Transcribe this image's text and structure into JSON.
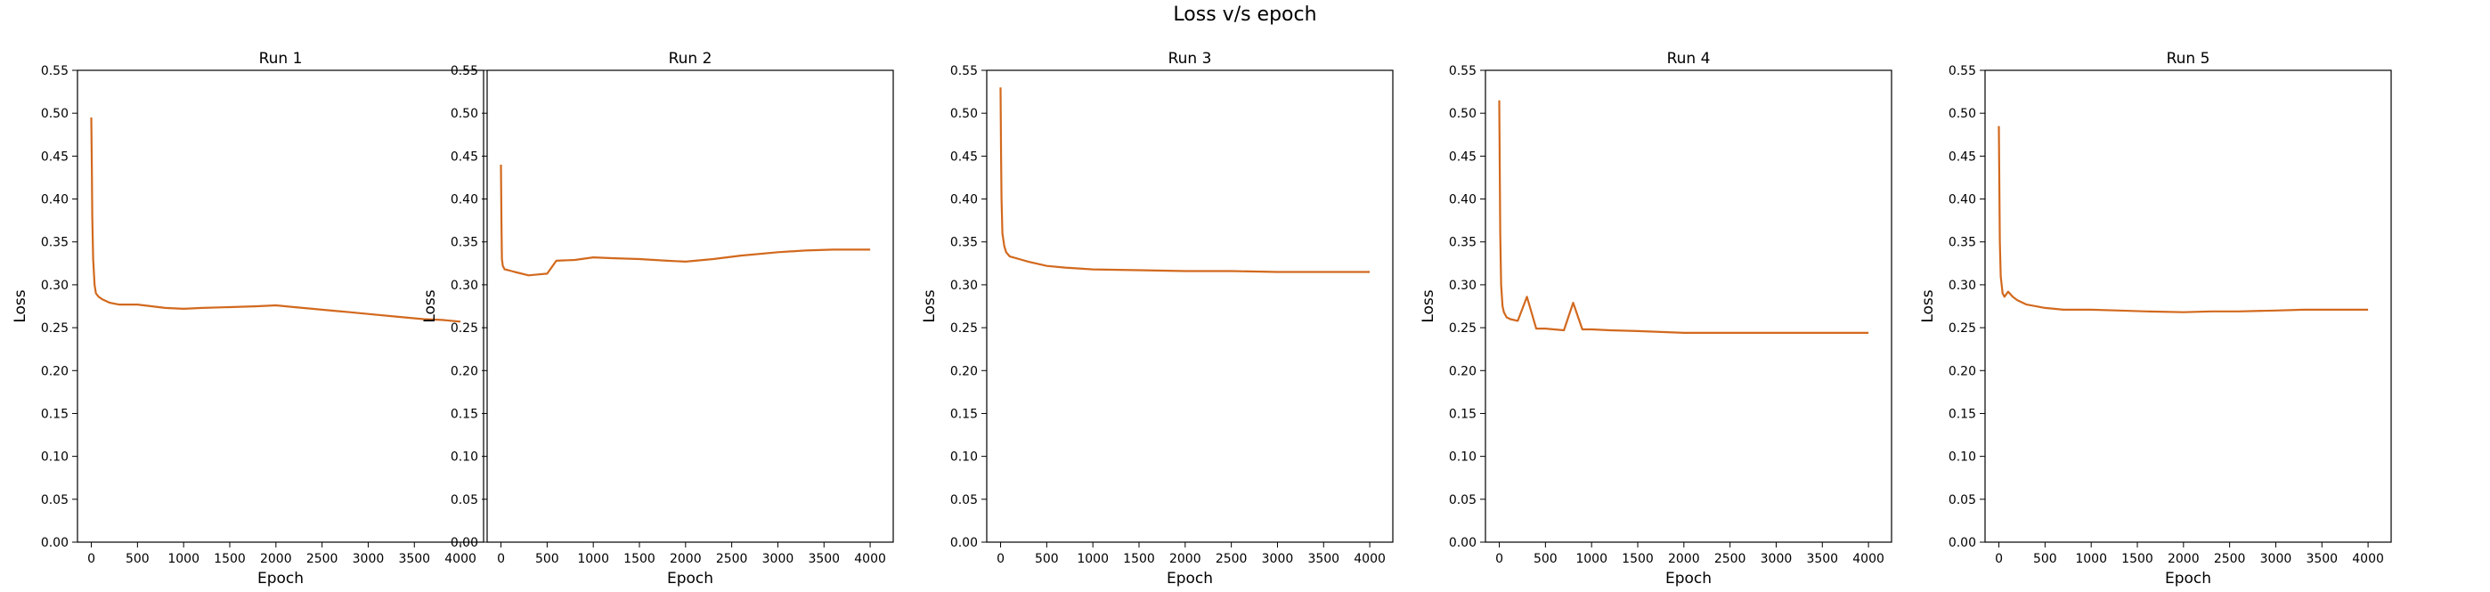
{
  "figure": {
    "suptitle": "Loss v/s epoch"
  },
  "chart_data": [
    {
      "type": "line",
      "title": "Run 1",
      "xlabel": "Epoch",
      "ylabel": "Loss",
      "xlim": [
        -150,
        4250
      ],
      "ylim": [
        0,
        0.55
      ],
      "xticks": [
        0,
        500,
        1000,
        1500,
        2000,
        2500,
        3000,
        3500,
        4000
      ],
      "yticks": [
        0.0,
        0.05,
        0.1,
        0.15,
        0.2,
        0.25,
        0.3,
        0.35,
        0.4,
        0.45,
        0.5,
        0.55
      ],
      "color": "#d2691e",
      "series": [
        {
          "x": [
            0,
            5,
            10,
            20,
            35,
            50,
            80,
            120,
            200,
            300,
            500,
            800,
            1000,
            1200,
            1500,
            1800,
            2000,
            2200,
            2500,
            2800,
            3000,
            3300,
            3600,
            3800,
            4000
          ],
          "y": [
            0.495,
            0.44,
            0.38,
            0.33,
            0.3,
            0.29,
            0.286,
            0.283,
            0.279,
            0.277,
            0.277,
            0.273,
            0.272,
            0.273,
            0.274,
            0.275,
            0.276,
            0.274,
            0.271,
            0.268,
            0.266,
            0.263,
            0.26,
            0.259,
            0.257
          ]
        }
      ]
    },
    {
      "type": "line",
      "title": "Run 2",
      "xlabel": "Epoch",
      "ylabel": "Loss",
      "xlim": [
        -150,
        4250
      ],
      "ylim": [
        0,
        0.55
      ],
      "xticks": [
        0,
        500,
        1000,
        1500,
        2000,
        2500,
        3000,
        3500,
        4000
      ],
      "yticks": [
        0.0,
        0.05,
        0.1,
        0.15,
        0.2,
        0.25,
        0.3,
        0.35,
        0.4,
        0.45,
        0.5,
        0.55
      ],
      "color": "#d2691e",
      "series": [
        {
          "x": [
            0,
            5,
            10,
            20,
            40,
            80,
            150,
            300,
            400,
            500,
            600,
            800,
            1000,
            1200,
            1500,
            1800,
            2000,
            2300,
            2600,
            3000,
            3300,
            3600,
            4000
          ],
          "y": [
            0.44,
            0.37,
            0.33,
            0.322,
            0.318,
            0.317,
            0.315,
            0.311,
            0.312,
            0.313,
            0.328,
            0.329,
            0.332,
            0.331,
            0.33,
            0.328,
            0.327,
            0.33,
            0.334,
            0.338,
            0.34,
            0.341,
            0.341
          ]
        }
      ]
    },
    {
      "type": "line",
      "title": "Run 3",
      "xlabel": "Epoch",
      "ylabel": "Loss",
      "xlim": [
        -150,
        4250
      ],
      "ylim": [
        0,
        0.55
      ],
      "xticks": [
        0,
        500,
        1000,
        1500,
        2000,
        2500,
        3000,
        3500,
        4000
      ],
      "yticks": [
        0.0,
        0.05,
        0.1,
        0.15,
        0.2,
        0.25,
        0.3,
        0.35,
        0.4,
        0.45,
        0.5,
        0.55
      ],
      "color": "#d2691e",
      "series": [
        {
          "x": [
            0,
            5,
            10,
            20,
            40,
            60,
            100,
            200,
            300,
            500,
            700,
            1000,
            1500,
            2000,
            2500,
            3000,
            3500,
            4000
          ],
          "y": [
            0.53,
            0.45,
            0.4,
            0.36,
            0.345,
            0.338,
            0.333,
            0.33,
            0.327,
            0.322,
            0.32,
            0.318,
            0.317,
            0.316,
            0.316,
            0.315,
            0.315,
            0.315
          ]
        }
      ]
    },
    {
      "type": "line",
      "title": "Run 4",
      "xlabel": "Epoch",
      "ylabel": "Loss",
      "xlim": [
        -150,
        4250
      ],
      "ylim": [
        0,
        0.55
      ],
      "xticks": [
        0,
        500,
        1000,
        1500,
        2000,
        2500,
        3000,
        3500,
        4000
      ],
      "yticks": [
        0.0,
        0.05,
        0.1,
        0.15,
        0.2,
        0.25,
        0.3,
        0.35,
        0.4,
        0.45,
        0.5,
        0.55
      ],
      "color": "#d2691e",
      "series": [
        {
          "x": [
            0,
            5,
            10,
            20,
            35,
            50,
            80,
            120,
            200,
            300,
            400,
            500,
            700,
            800,
            900,
            1000,
            1200,
            1500,
            2000,
            2500,
            3000,
            3500,
            4000
          ],
          "y": [
            0.515,
            0.43,
            0.36,
            0.3,
            0.275,
            0.268,
            0.262,
            0.26,
            0.258,
            0.286,
            0.249,
            0.249,
            0.247,
            0.279,
            0.248,
            0.248,
            0.247,
            0.246,
            0.244,
            0.244,
            0.244,
            0.244,
            0.244
          ]
        }
      ]
    },
    {
      "type": "line",
      "title": "Run 5",
      "xlabel": "Epoch",
      "ylabel": "Loss",
      "xlim": [
        -150,
        4250
      ],
      "ylim": [
        0,
        0.55
      ],
      "xticks": [
        0,
        500,
        1000,
        1500,
        2000,
        2500,
        3000,
        3500,
        4000
      ],
      "yticks": [
        0.0,
        0.05,
        0.1,
        0.15,
        0.2,
        0.25,
        0.3,
        0.35,
        0.4,
        0.45,
        0.5,
        0.55
      ],
      "color": "#d2691e",
      "series": [
        {
          "x": [
            0,
            5,
            10,
            20,
            40,
            60,
            100,
            150,
            200,
            300,
            500,
            700,
            1000,
            1300,
            1600,
            2000,
            2300,
            2600,
            3000,
            3300,
            3600,
            4000
          ],
          "y": [
            0.485,
            0.41,
            0.35,
            0.31,
            0.29,
            0.286,
            0.292,
            0.286,
            0.282,
            0.277,
            0.273,
            0.271,
            0.271,
            0.27,
            0.269,
            0.268,
            0.269,
            0.269,
            0.27,
            0.271,
            0.271,
            0.271
          ]
        }
      ]
    }
  ]
}
